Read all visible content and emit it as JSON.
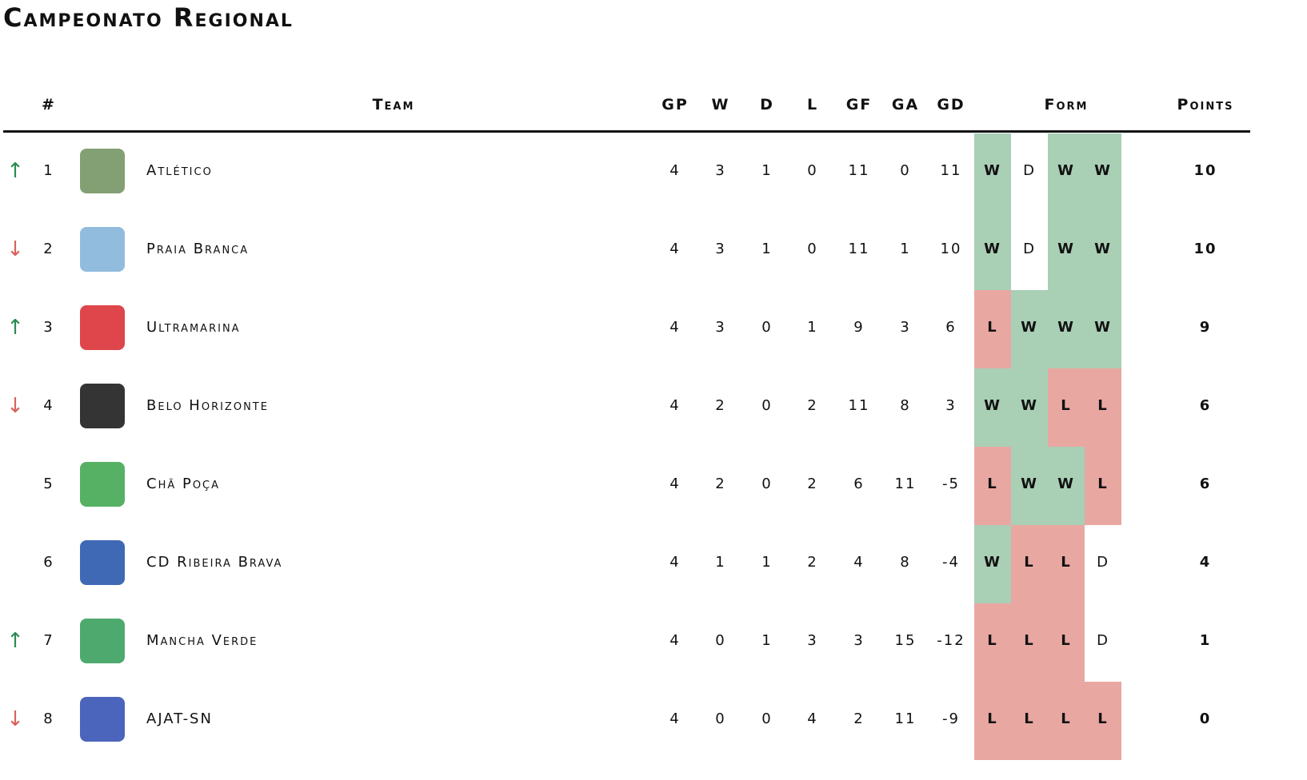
{
  "title": "Campeonato Regional",
  "headers": {
    "rank": "#",
    "team": "Team",
    "gp": "GP",
    "w": "W",
    "d": "D",
    "l": "L",
    "gf": "GF",
    "ga": "GA",
    "gd": "GD",
    "form": "Form",
    "points": "Points"
  },
  "trend_colors": {
    "↑": "#2a8a4f",
    "↓": "#d9625c"
  },
  "form_styles": {
    "W": {
      "color": "#a9cfb5",
      "bold": true
    },
    "L": {
      "color": "#e9a7a2",
      "bold": true
    },
    "D": {
      "color": "#ffffff",
      "bold": false
    }
  },
  "rows": [
    {
      "trend": "↑",
      "rank": 1,
      "team": "Atlético",
      "gp": 4,
      "w": 3,
      "d": 1,
      "l": 0,
      "gf": 11,
      "ga": 0,
      "gd": 11,
      "form": [
        "W",
        "D",
        "W",
        "W"
      ],
      "points": 10
    },
    {
      "trend": "↓",
      "rank": 2,
      "team": "Praia Branca",
      "gp": 4,
      "w": 3,
      "d": 1,
      "l": 0,
      "gf": 11,
      "ga": 1,
      "gd": 10,
      "form": [
        "W",
        "D",
        "W",
        "W"
      ],
      "points": 10
    },
    {
      "trend": "↑",
      "rank": 3,
      "team": "Ultramarina",
      "gp": 4,
      "w": 3,
      "d": 0,
      "l": 1,
      "gf": 9,
      "ga": 3,
      "gd": 6,
      "form": [
        "L",
        "W",
        "W",
        "W"
      ],
      "points": 9
    },
    {
      "trend": "↓",
      "rank": 4,
      "team": "Belo Horizonte",
      "gp": 4,
      "w": 2,
      "d": 0,
      "l": 2,
      "gf": 11,
      "ga": 8,
      "gd": 3,
      "form": [
        "W",
        "W",
        "L",
        "L"
      ],
      "points": 6
    },
    {
      "rank": 5,
      "team": "Chã Poça",
      "gp": 4,
      "w": 2,
      "d": 0,
      "l": 2,
      "gf": 6,
      "ga": 11,
      "gd": -5,
      "form": [
        "L",
        "W",
        "W",
        "L"
      ],
      "points": 6
    },
    {
      "rank": 6,
      "team": "CD Ribeira Brava",
      "gp": 4,
      "w": 1,
      "d": 1,
      "l": 2,
      "gf": 4,
      "ga": 8,
      "gd": -4,
      "form": [
        "W",
        "L",
        "L",
        "D"
      ],
      "points": 4
    },
    {
      "trend": "↑",
      "rank": 7,
      "team": "Mancha Verde",
      "gp": 4,
      "w": 0,
      "d": 1,
      "l": 3,
      "gf": 3,
      "ga": 15,
      "gd": -12,
      "form": [
        "L",
        "L",
        "L",
        "D"
      ],
      "points": 1
    },
    {
      "trend": "↓",
      "rank": 8,
      "team": "AJAT-SN",
      "gp": 4,
      "w": 0,
      "d": 0,
      "l": 4,
      "gf": 2,
      "ga": 11,
      "gd": -9,
      "form": [
        "L",
        "L",
        "L",
        "L"
      ],
      "points": 0
    }
  ]
}
